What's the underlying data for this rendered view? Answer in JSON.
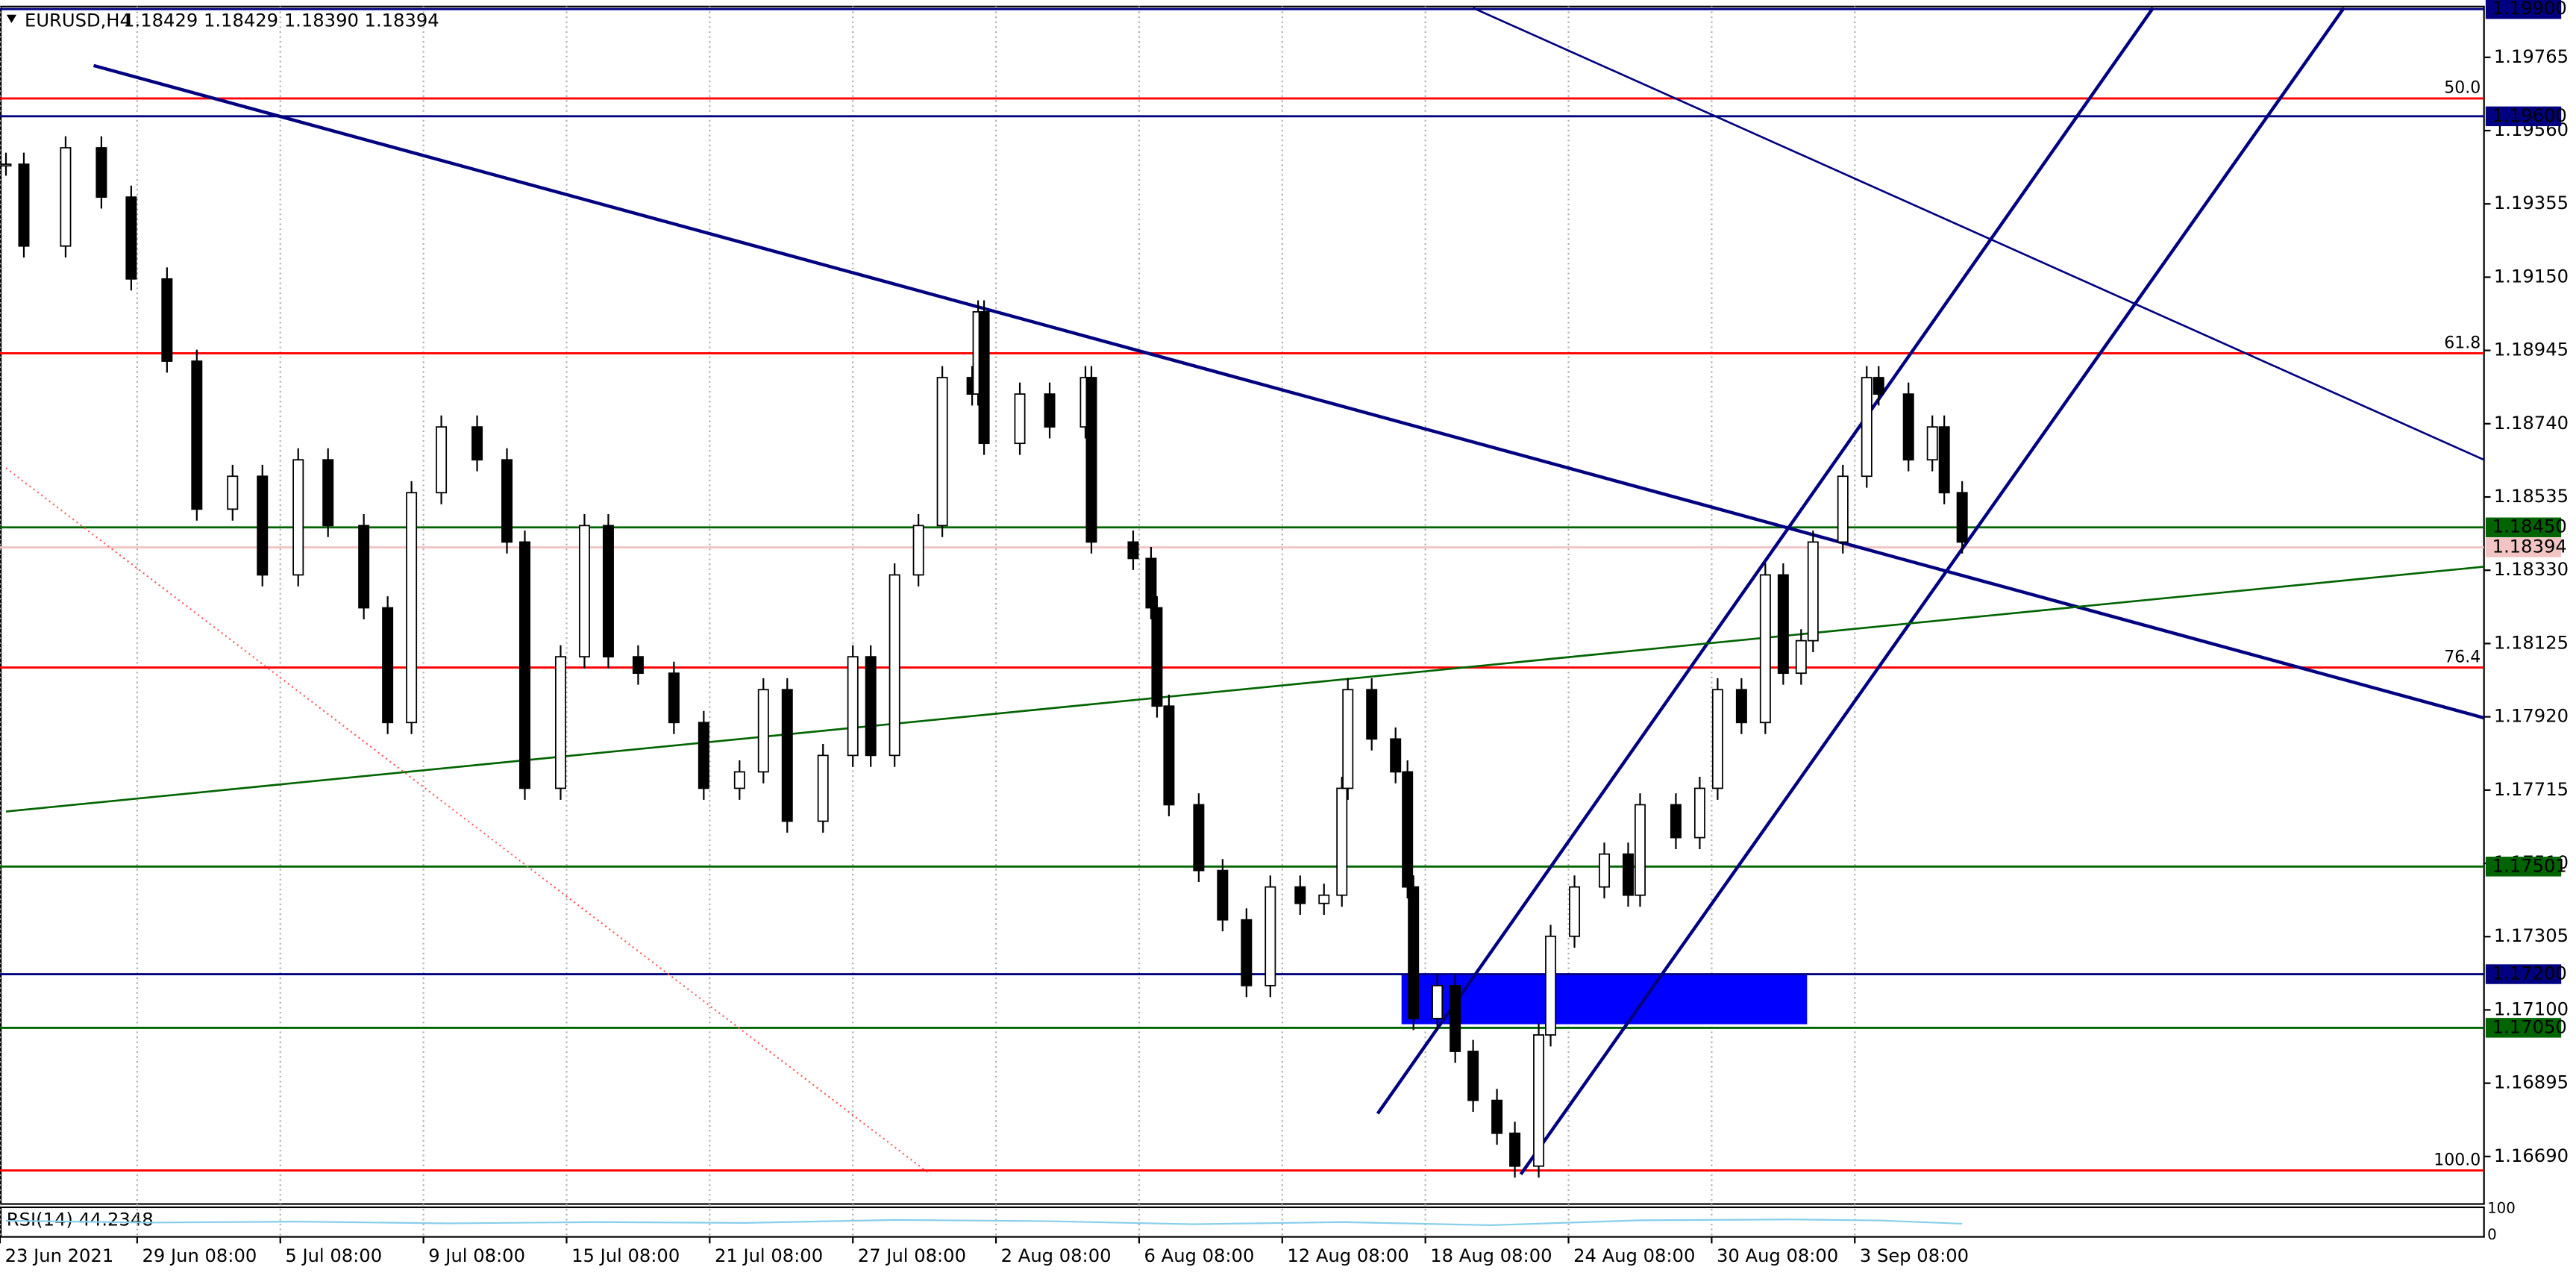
{
  "chart_data": {
    "type": "candlestick",
    "title": "EURUSD,H4",
    "quote": "1.18429 1.18429 1.18390 1.18394",
    "xlim": [
      0,
      416.5
    ],
    "ylim": [
      1.16557,
      1.19907
    ],
    "xticks": [
      {
        "value": 0,
        "label": "23 Jun 2021"
      },
      {
        "value": 23,
        "label": "29 Jun 08:00"
      },
      {
        "value": 47,
        "label": "5 Jul 08:00"
      },
      {
        "value": 71,
        "label": "9 Jul 08:00"
      },
      {
        "value": 95,
        "label": "15 Jul 08:00"
      },
      {
        "value": 119,
        "label": "21 Jul 08:00"
      },
      {
        "value": 143,
        "label": "27 Jul 08:00"
      },
      {
        "value": 167,
        "label": "2 Aug 08:00"
      },
      {
        "value": 191,
        "label": "6 Aug 08:00"
      },
      {
        "value": 215,
        "label": "12 Aug 08:00"
      },
      {
        "value": 239,
        "label": "18 Aug 08:00"
      },
      {
        "value": 263,
        "label": "24 Aug 08:00"
      },
      {
        "value": 287,
        "label": "30 Aug 08:00"
      },
      {
        "value": 311,
        "label": "3 Sep 08:00"
      }
    ],
    "yticks": [
      {
        "value": 1.19765,
        "label": "1.19765"
      },
      {
        "value": 1.1956,
        "label": "1.19560"
      },
      {
        "value": 1.19355,
        "label": "1.19355"
      },
      {
        "value": 1.1915,
        "label": "1.19150"
      },
      {
        "value": 1.18945,
        "label": "1.18945"
      },
      {
        "value": 1.1874,
        "label": "1.18740"
      },
      {
        "value": 1.18535,
        "label": "1.18535"
      },
      {
        "value": 1.1833,
        "label": "1.18330"
      },
      {
        "value": 1.18125,
        "label": "1.18125"
      },
      {
        "value": 1.1792,
        "label": "1.17920"
      },
      {
        "value": 1.17715,
        "label": "1.17715"
      },
      {
        "value": 1.1751,
        "label": "1.17510"
      },
      {
        "value": 1.17305,
        "label": "1.17305"
      },
      {
        "value": 1.171,
        "label": "1.17100"
      },
      {
        "value": 1.16895,
        "label": "1.16895"
      },
      {
        "value": 1.1669,
        "label": "1.16690"
      }
    ],
    "x": [
      1,
      4,
      11,
      17,
      22,
      28,
      33,
      39,
      44,
      50,
      55,
      61,
      65,
      69,
      74,
      80,
      85,
      88,
      94,
      98,
      102,
      107,
      113,
      118,
      124,
      128,
      132,
      138,
      143,
      146,
      150,
      154,
      158,
      163,
      164,
      165,
      171,
      176,
      182,
      183,
      190,
      193,
      194,
      196,
      201,
      205,
      209,
      213,
      218,
      222,
      225,
      226,
      230,
      234,
      236,
      237,
      241,
      244,
      247,
      251,
      254,
      258,
      260,
      264,
      269,
      273,
      275,
      281,
      285,
      288,
      292,
      296,
      299,
      302,
      304,
      309,
      313,
      315,
      320,
      324,
      326,
      329
    ],
    "close": [
      1.19466,
      1.19237,
      1.19512,
      1.19374,
      1.19145,
      1.18915,
      1.18501,
      1.18593,
      1.18317,
      1.18639,
      1.18455,
      1.18225,
      1.17904,
      1.18547,
      1.18731,
      1.18639,
      1.18409,
      1.1772,
      1.18088,
      1.18455,
      1.18088,
      1.18042,
      1.17904,
      1.1772,
      1.17766,
      1.17996,
      1.17628,
      1.17812,
      1.18088,
      1.17812,
      1.18317,
      1.18455,
      1.18869,
      1.18823,
      1.19053,
      1.18685,
      1.18823,
      1.18731,
      1.18869,
      1.18409,
      1.18363,
      1.18225,
      1.1795,
      1.17674,
      1.1749,
      1.17352,
      1.17168,
      1.17444,
      1.17398,
      1.17421,
      1.1772,
      1.17996,
      1.17858,
      1.17766,
      1.17444,
      1.17076,
      1.17168,
      1.16984,
      1.16847,
      1.16755,
      1.16663,
      1.1703,
      1.17306,
      1.17444,
      1.17536,
      1.17421,
      1.17674,
      1.17582,
      1.1772,
      1.17996,
      1.17904,
      1.18317,
      1.18042,
      1.18133,
      1.18409,
      1.18593,
      1.18869,
      1.18823,
      1.18639,
      1.18731,
      1.18547,
      1.18409
    ],
    "levels": [
      {
        "price": 1.199,
        "color": "#000080",
        "label": "1.19900"
      },
      {
        "price": 1.1965,
        "color": "#ff0000",
        "fib": "50.0"
      },
      {
        "price": 1.196,
        "color": "#000080",
        "label": "1.19600"
      },
      {
        "price": 1.18937,
        "color": "#ff0000",
        "fib": "61.8"
      },
      {
        "price": 1.1845,
        "color": "#006400",
        "label": "1.18450"
      },
      {
        "price": 1.18394,
        "color": "#f2c4c4",
        "label": "1.18394"
      },
      {
        "price": 1.18058,
        "color": "#ff0000",
        "fib": "76.4"
      },
      {
        "price": 1.17501,
        "color": "#006400",
        "label": "1.17501"
      },
      {
        "price": 1.172,
        "color": "#000080",
        "label": "1.17200"
      },
      {
        "price": 1.1705,
        "color": "#006400",
        "label": "1.17050"
      },
      {
        "price": 1.16651,
        "color": "#ff0000",
        "fib": "100.0"
      }
    ],
    "trend_lines": [
      {
        "color": "#000080",
        "style": "thick",
        "x": [
          15.7,
          416.5
        ],
        "price": [
          1.19742,
          1.17917
        ]
      },
      {
        "color": "#000080",
        "style": "thin",
        "x": [
          247,
          416.5
        ],
        "price": [
          1.19903,
          1.18639
        ]
      },
      {
        "color": "#000080",
        "style": "thick",
        "x": [
          231,
          361
        ],
        "price": [
          1.1681,
          1.19903
        ]
      },
      {
        "color": "#000080",
        "style": "thick",
        "x": [
          255,
          393
        ],
        "price": [
          1.1664,
          1.19903
        ]
      },
      {
        "color": "#006400",
        "style": "thin",
        "x": [
          1,
          416.5
        ],
        "price": [
          1.17655,
          1.1834
        ]
      },
      {
        "color": "#ff6060",
        "style": "dotted",
        "x": [
          1,
          156
        ],
        "price": [
          1.18616,
          1.1664
        ]
      }
    ],
    "zone": {
      "color": "#0000ff",
      "x": [
        235,
        303
      ],
      "price": [
        1.1706,
        1.172
      ]
    },
    "rsi": {
      "label": "RSI(14) 44.2348",
      "ylim": [
        0,
        100
      ],
      "yticks": [
        0,
        100
      ],
      "color": "#87ceeb",
      "x": [
        1,
        25,
        50,
        75,
        100,
        125,
        150,
        175,
        200,
        225,
        250,
        275,
        300,
        315,
        329
      ],
      "values": [
        55,
        48,
        52,
        45,
        50,
        47,
        58,
        54,
        42,
        50,
        38,
        57,
        60,
        56,
        44
      ]
    }
  }
}
